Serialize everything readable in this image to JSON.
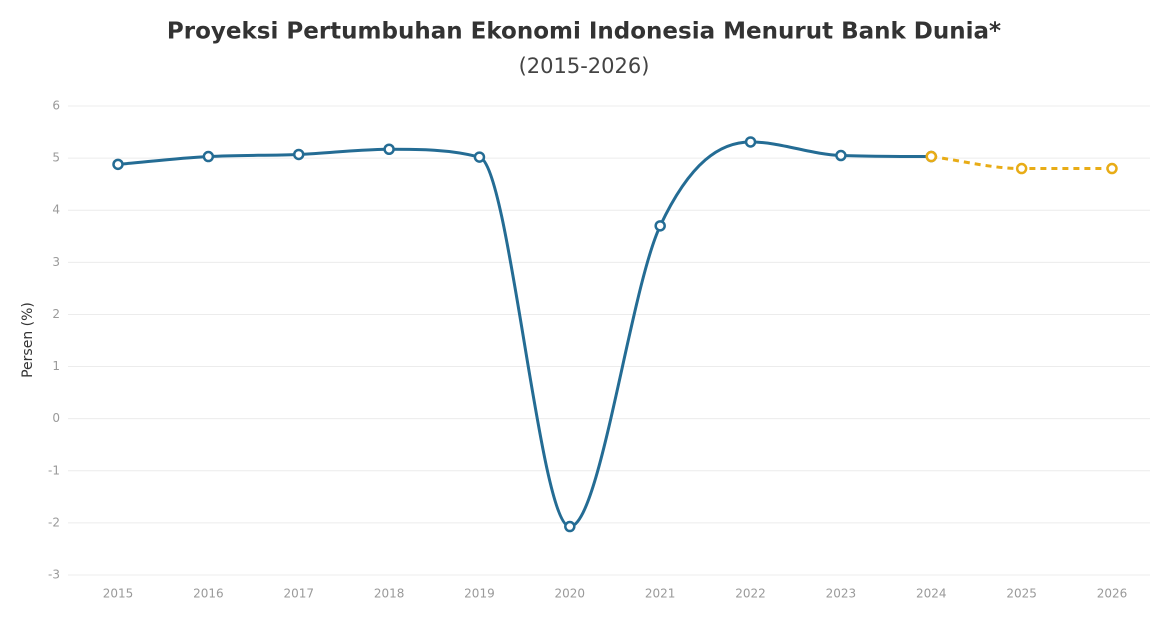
{
  "chart_data": {
    "type": "line",
    "title": "Proyeksi Pertumbuhan Ekonomi Indonesia Menurut Bank Dunia*",
    "subtitle": "(2015-2026)",
    "y_label": "Persen (%)",
    "categories": [
      "2015",
      "2016",
      "2017",
      "2018",
      "2019",
      "2020",
      "2021",
      "2022",
      "2023",
      "2024",
      "2025",
      "2026"
    ],
    "series": [
      {
        "color": "#246c94",
        "dashed": false,
        "values": [
          4.88,
          5.03,
          5.07,
          5.17,
          5.02,
          -2.07,
          3.7,
          5.31,
          5.05,
          5.03,
          null,
          null
        ]
      },
      {
        "color": "#e8ac16",
        "dashed": true,
        "values": [
          null,
          null,
          null,
          null,
          null,
          null,
          null,
          null,
          null,
          5.03,
          4.8,
          4.8
        ]
      }
    ],
    "ylim": [
      -3,
      6
    ],
    "yticks": [
      -3,
      -2,
      -1,
      0,
      1,
      2,
      3,
      4,
      5,
      6
    ],
    "grid": true
  }
}
